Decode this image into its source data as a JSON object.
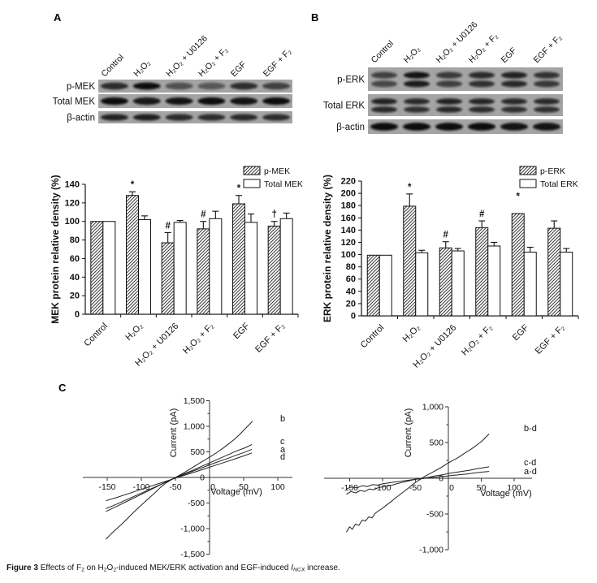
{
  "panels": {
    "a": {
      "letter": "A",
      "blot": {
        "lanes": [
          "Control",
          "H₂O₂",
          "H₂O₂ + U0126",
          "H₂O₂ + F₂",
          "EGF",
          "EGF + F₂"
        ],
        "rows": [
          {
            "label": "p-MEK",
            "bands": 1,
            "intensities": [
              0.8,
              1.0,
              0.55,
              0.5,
              0.78,
              0.65
            ]
          },
          {
            "label": "Total MEK",
            "bands": 1,
            "intensities": [
              1.0,
              0.92,
              0.95,
              1.0,
              0.95,
              1.0
            ]
          },
          {
            "label": "β-actin",
            "bands": 1,
            "intensities": [
              0.85,
              0.88,
              0.8,
              0.78,
              0.8,
              0.78
            ]
          }
        ]
      }
    },
    "b": {
      "letter": "B",
      "blot": {
        "lanes": [
          "Control",
          "H₂O₂",
          "H₂O₂ + U0126",
          "H₂O₂ + F₂",
          "EGF",
          "EGF + F₂"
        ],
        "rows": [
          {
            "label": "p-ERK",
            "bands": 2,
            "intensities": [
              0.65,
              0.95,
              0.7,
              0.8,
              0.85,
              0.75
            ]
          },
          {
            "label": "Total ERK",
            "bands": 2,
            "intensities": [
              0.85,
              0.8,
              0.85,
              0.82,
              0.8,
              0.8
            ]
          },
          {
            "label": "β-actin",
            "bands": 1,
            "intensities": [
              1.0,
              1.0,
              1.0,
              1.0,
              0.95,
              0.95
            ]
          }
        ]
      }
    },
    "c": {
      "letter": "C"
    }
  },
  "chart_data": [
    {
      "id": "mek",
      "type": "bar",
      "ylabel": "MEK protein relative density (%)",
      "ylim": [
        0,
        140
      ],
      "ytick_step": 20,
      "categories": [
        "Control",
        "H₂O₂",
        "H₂O₂ + U0126",
        "H₂O₂ + F₂",
        "EGF",
        "EGF + F₂"
      ],
      "series": [
        {
          "name": "p-MEK",
          "fill": "hatch",
          "values": [
            100,
            128,
            77,
            92,
            119,
            95
          ],
          "errors": [
            0,
            4,
            11,
            8,
            9,
            5
          ],
          "annotations": [
            "",
            "*",
            "#",
            "#",
            "*",
            "†"
          ],
          "annotation_y": [
            null,
            null,
            null,
            null,
            null,
            null
          ]
        },
        {
          "name": "Total MEK",
          "fill": "white",
          "values": [
            100,
            102,
            99,
            103,
            99,
            103
          ],
          "errors": [
            0,
            4,
            2,
            8,
            9,
            6
          ],
          "annotations": [
            "",
            "",
            "",
            "",
            "",
            ""
          ],
          "annotation_y": [
            null,
            null,
            null,
            null,
            null,
            null
          ]
        }
      ],
      "legend_position": "top-right",
      "grid": false
    },
    {
      "id": "erk",
      "type": "bar",
      "ylabel": "ERK protein relative density (%)",
      "ylim": [
        0,
        220
      ],
      "ytick_step": 20,
      "categories": [
        "Control",
        "H₂O₂",
        "H₂O₂ + U0126",
        "H₂O₂ + F₂",
        "EGF",
        "EGF + F₂"
      ],
      "series": [
        {
          "name": "p-ERK",
          "fill": "hatch",
          "values": [
            99,
            179,
            111,
            144,
            167,
            143
          ],
          "errors": [
            0,
            20,
            10,
            11,
            0,
            12
          ],
          "annotations": [
            "",
            "*",
            "#",
            "#",
            "*",
            ""
          ],
          "annotation_y": [
            null,
            null,
            null,
            null,
            190,
            null
          ]
        },
        {
          "name": "Total ERK",
          "fill": "white",
          "values": [
            99,
            103,
            106,
            114,
            104,
            104
          ],
          "errors": [
            0,
            4,
            4,
            6,
            8,
            6
          ],
          "annotations": [
            "",
            "",
            "",
            "",
            "",
            ""
          ],
          "annotation_y": [
            null,
            null,
            null,
            null,
            null,
            null
          ]
        }
      ],
      "legend_position": "top-right",
      "grid": false
    },
    {
      "id": "iv_left",
      "type": "line",
      "xlabel": "Voltage (mV)",
      "ylabel": "Current (pA)",
      "xlim": [
        -190,
        125
      ],
      "ylim": [
        -1500,
        1500
      ],
      "xticks": [
        -150,
        -100,
        -50,
        0,
        50,
        100
      ],
      "yticks": [
        -1500,
        -1000,
        -500,
        0,
        500,
        1000,
        1500
      ],
      "grid": false,
      "series": [
        {
          "name": "b",
          "points": [
            [
              -152,
              -1210
            ],
            [
              -144,
              -1100
            ],
            [
              -136,
              -1000
            ],
            [
              -128,
              -905
            ],
            [
              -120,
              -800
            ],
            [
              -112,
              -690
            ],
            [
              -104,
              -590
            ],
            [
              -96,
              -490
            ],
            [
              -88,
              -395
            ],
            [
              -80,
              -300
            ],
            [
              -72,
              -195
            ],
            [
              -64,
              -110
            ],
            [
              -56,
              -45
            ],
            [
              -50,
              0
            ],
            [
              -44,
              45
            ],
            [
              -36,
              105
            ],
            [
              -28,
              170
            ],
            [
              -20,
              235
            ],
            [
              -12,
              300
            ],
            [
              -4,
              365
            ],
            [
              4,
              430
            ],
            [
              12,
              500
            ],
            [
              20,
              575
            ],
            [
              28,
              655
            ],
            [
              36,
              740
            ],
            [
              44,
              840
            ],
            [
              52,
              950
            ],
            [
              58,
              1030
            ],
            [
              63,
              1100
            ]
          ]
        },
        {
          "name": "c",
          "points": [
            [
              -152,
              -665
            ],
            [
              -136,
              -565
            ],
            [
              -120,
              -460
            ],
            [
              -104,
              -355
            ],
            [
              -88,
              -250
            ],
            [
              -72,
              -145
            ],
            [
              -56,
              -40
            ],
            [
              -40,
              55
            ],
            [
              -24,
              145
            ],
            [
              -8,
              240
            ],
            [
              8,
              330
            ],
            [
              24,
              425
            ],
            [
              40,
              520
            ],
            [
              52,
              580
            ],
            [
              62,
              645
            ]
          ]
        },
        {
          "name": "a",
          "points": [
            [
              -152,
              -610
            ],
            [
              -136,
              -520
            ],
            [
              -120,
              -425
            ],
            [
              -104,
              -330
            ],
            [
              -88,
              -235
            ],
            [
              -72,
              -140
            ],
            [
              -56,
              -40
            ],
            [
              -40,
              45
            ],
            [
              -24,
              125
            ],
            [
              -8,
              205
            ],
            [
              8,
              285
            ],
            [
              24,
              360
            ],
            [
              40,
              440
            ],
            [
              52,
              495
            ],
            [
              62,
              550
            ]
          ]
        },
        {
          "name": "d",
          "points": [
            [
              -152,
              -455
            ],
            [
              -136,
              -390
            ],
            [
              -120,
              -320
            ],
            [
              -104,
              -250
            ],
            [
              -88,
              -180
            ],
            [
              -72,
              -110
            ],
            [
              -56,
              -40
            ],
            [
              -40,
              30
            ],
            [
              -24,
              95
            ],
            [
              -8,
              165
            ],
            [
              8,
              235
            ],
            [
              24,
              305
            ],
            [
              40,
              375
            ],
            [
              52,
              430
            ],
            [
              62,
              480
            ]
          ]
        }
      ]
    },
    {
      "id": "iv_right",
      "type": "line",
      "xlabel": "Voltage (mV)",
      "ylabel": "Current (pA)",
      "xlim": [
        -190,
        125
      ],
      "ylim": [
        -1000,
        1000
      ],
      "xticks": [
        -150,
        -100,
        -50,
        0,
        50,
        100
      ],
      "yticks": [
        -1000,
        -500,
        0,
        500,
        1000
      ],
      "grid": false,
      "series": [
        {
          "name": "b-d",
          "points": [
            [
              -155,
              -755
            ],
            [
              -150,
              -680
            ],
            [
              -146,
              -715
            ],
            [
              -141,
              -640
            ],
            [
              -136,
              -660
            ],
            [
              -131,
              -585
            ],
            [
              -126,
              -600
            ],
            [
              -121,
              -540
            ],
            [
              -116,
              -555
            ],
            [
              -111,
              -490
            ],
            [
              -106,
              -455
            ],
            [
              -101,
              -425
            ],
            [
              -96,
              -390
            ],
            [
              -91,
              -355
            ],
            [
              -86,
              -320
            ],
            [
              -81,
              -280
            ],
            [
              -76,
              -245
            ],
            [
              -71,
              -210
            ],
            [
              -66,
              -175
            ],
            [
              -61,
              -140
            ],
            [
              -56,
              -100
            ],
            [
              -51,
              -65
            ],
            [
              -46,
              -35
            ],
            [
              -41,
              -5
            ],
            [
              -36,
              25
            ],
            [
              -31,
              50
            ],
            [
              -26,
              75
            ],
            [
              -21,
              100
            ],
            [
              -16,
              125
            ],
            [
              -11,
              150
            ],
            [
              -6,
              180
            ],
            [
              -1,
              210
            ],
            [
              4,
              235
            ],
            [
              9,
              260
            ],
            [
              14,
              285
            ],
            [
              19,
              315
            ],
            [
              24,
              345
            ],
            [
              29,
              375
            ],
            [
              34,
              405
            ],
            [
              39,
              435
            ],
            [
              44,
              470
            ],
            [
              49,
              505
            ],
            [
              54,
              545
            ],
            [
              58,
              585
            ],
            [
              62,
              620
            ]
          ]
        },
        {
          "name": "c-d",
          "points": [
            [
              -155,
              -225
            ],
            [
              -148,
              -185
            ],
            [
              -141,
              -205
            ],
            [
              -134,
              -170
            ],
            [
              -127,
              -185
            ],
            [
              -120,
              -150
            ],
            [
              -113,
              -160
            ],
            [
              -106,
              -130
            ],
            [
              -99,
              -120
            ],
            [
              -92,
              -105
            ],
            [
              -85,
              -95
            ],
            [
              -78,
              -75
            ],
            [
              -71,
              -60
            ],
            [
              -64,
              -45
            ],
            [
              -57,
              -30
            ],
            [
              -50,
              -15
            ],
            [
              -43,
              -5
            ],
            [
              -36,
              5
            ],
            [
              -29,
              15
            ],
            [
              -22,
              30
            ],
            [
              -15,
              40
            ],
            [
              -8,
              50
            ],
            [
              -1,
              65
            ],
            [
              6,
              75
            ],
            [
              13,
              85
            ],
            [
              20,
              95
            ],
            [
              27,
              105
            ],
            [
              34,
              115
            ],
            [
              41,
              130
            ],
            [
              48,
              140
            ],
            [
              55,
              150
            ],
            [
              62,
              160
            ]
          ]
        },
        {
          "name": "a-d",
          "points": [
            [
              -155,
              -150
            ],
            [
              -147,
              -120
            ],
            [
              -139,
              -135
            ],
            [
              -131,
              -105
            ],
            [
              -123,
              -115
            ],
            [
              -115,
              -90
            ],
            [
              -107,
              -95
            ],
            [
              -99,
              -75
            ],
            [
              -91,
              -65
            ],
            [
              -83,
              -55
            ],
            [
              -75,
              -45
            ],
            [
              -67,
              -35
            ],
            [
              -59,
              -25
            ],
            [
              -51,
              -15
            ],
            [
              -43,
              -10
            ],
            [
              -35,
              0
            ],
            [
              -27,
              10
            ],
            [
              -19,
              15
            ],
            [
              -11,
              25
            ],
            [
              -3,
              30
            ],
            [
              5,
              40
            ],
            [
              13,
              45
            ],
            [
              21,
              55
            ],
            [
              29,
              60
            ],
            [
              37,
              70
            ],
            [
              45,
              80
            ],
            [
              53,
              88
            ],
            [
              62,
              95
            ]
          ]
        }
      ]
    }
  ],
  "caption": {
    "segments": [
      {
        "t": "Figure 3 ",
        "b": true
      },
      {
        "t": "Effects of F"
      },
      {
        "t": "2",
        "sub": true
      },
      {
        "t": " on H"
      },
      {
        "t": "2",
        "sub": true
      },
      {
        "t": "O"
      },
      {
        "t": "2",
        "sub": true
      },
      {
        "t": "-induced MEK/ERK activation and EGF-induced "
      },
      {
        "t": "I",
        "i": true
      },
      {
        "t": "NCX",
        "sub": true,
        "i": true
      },
      {
        "t": " increase."
      }
    ]
  }
}
